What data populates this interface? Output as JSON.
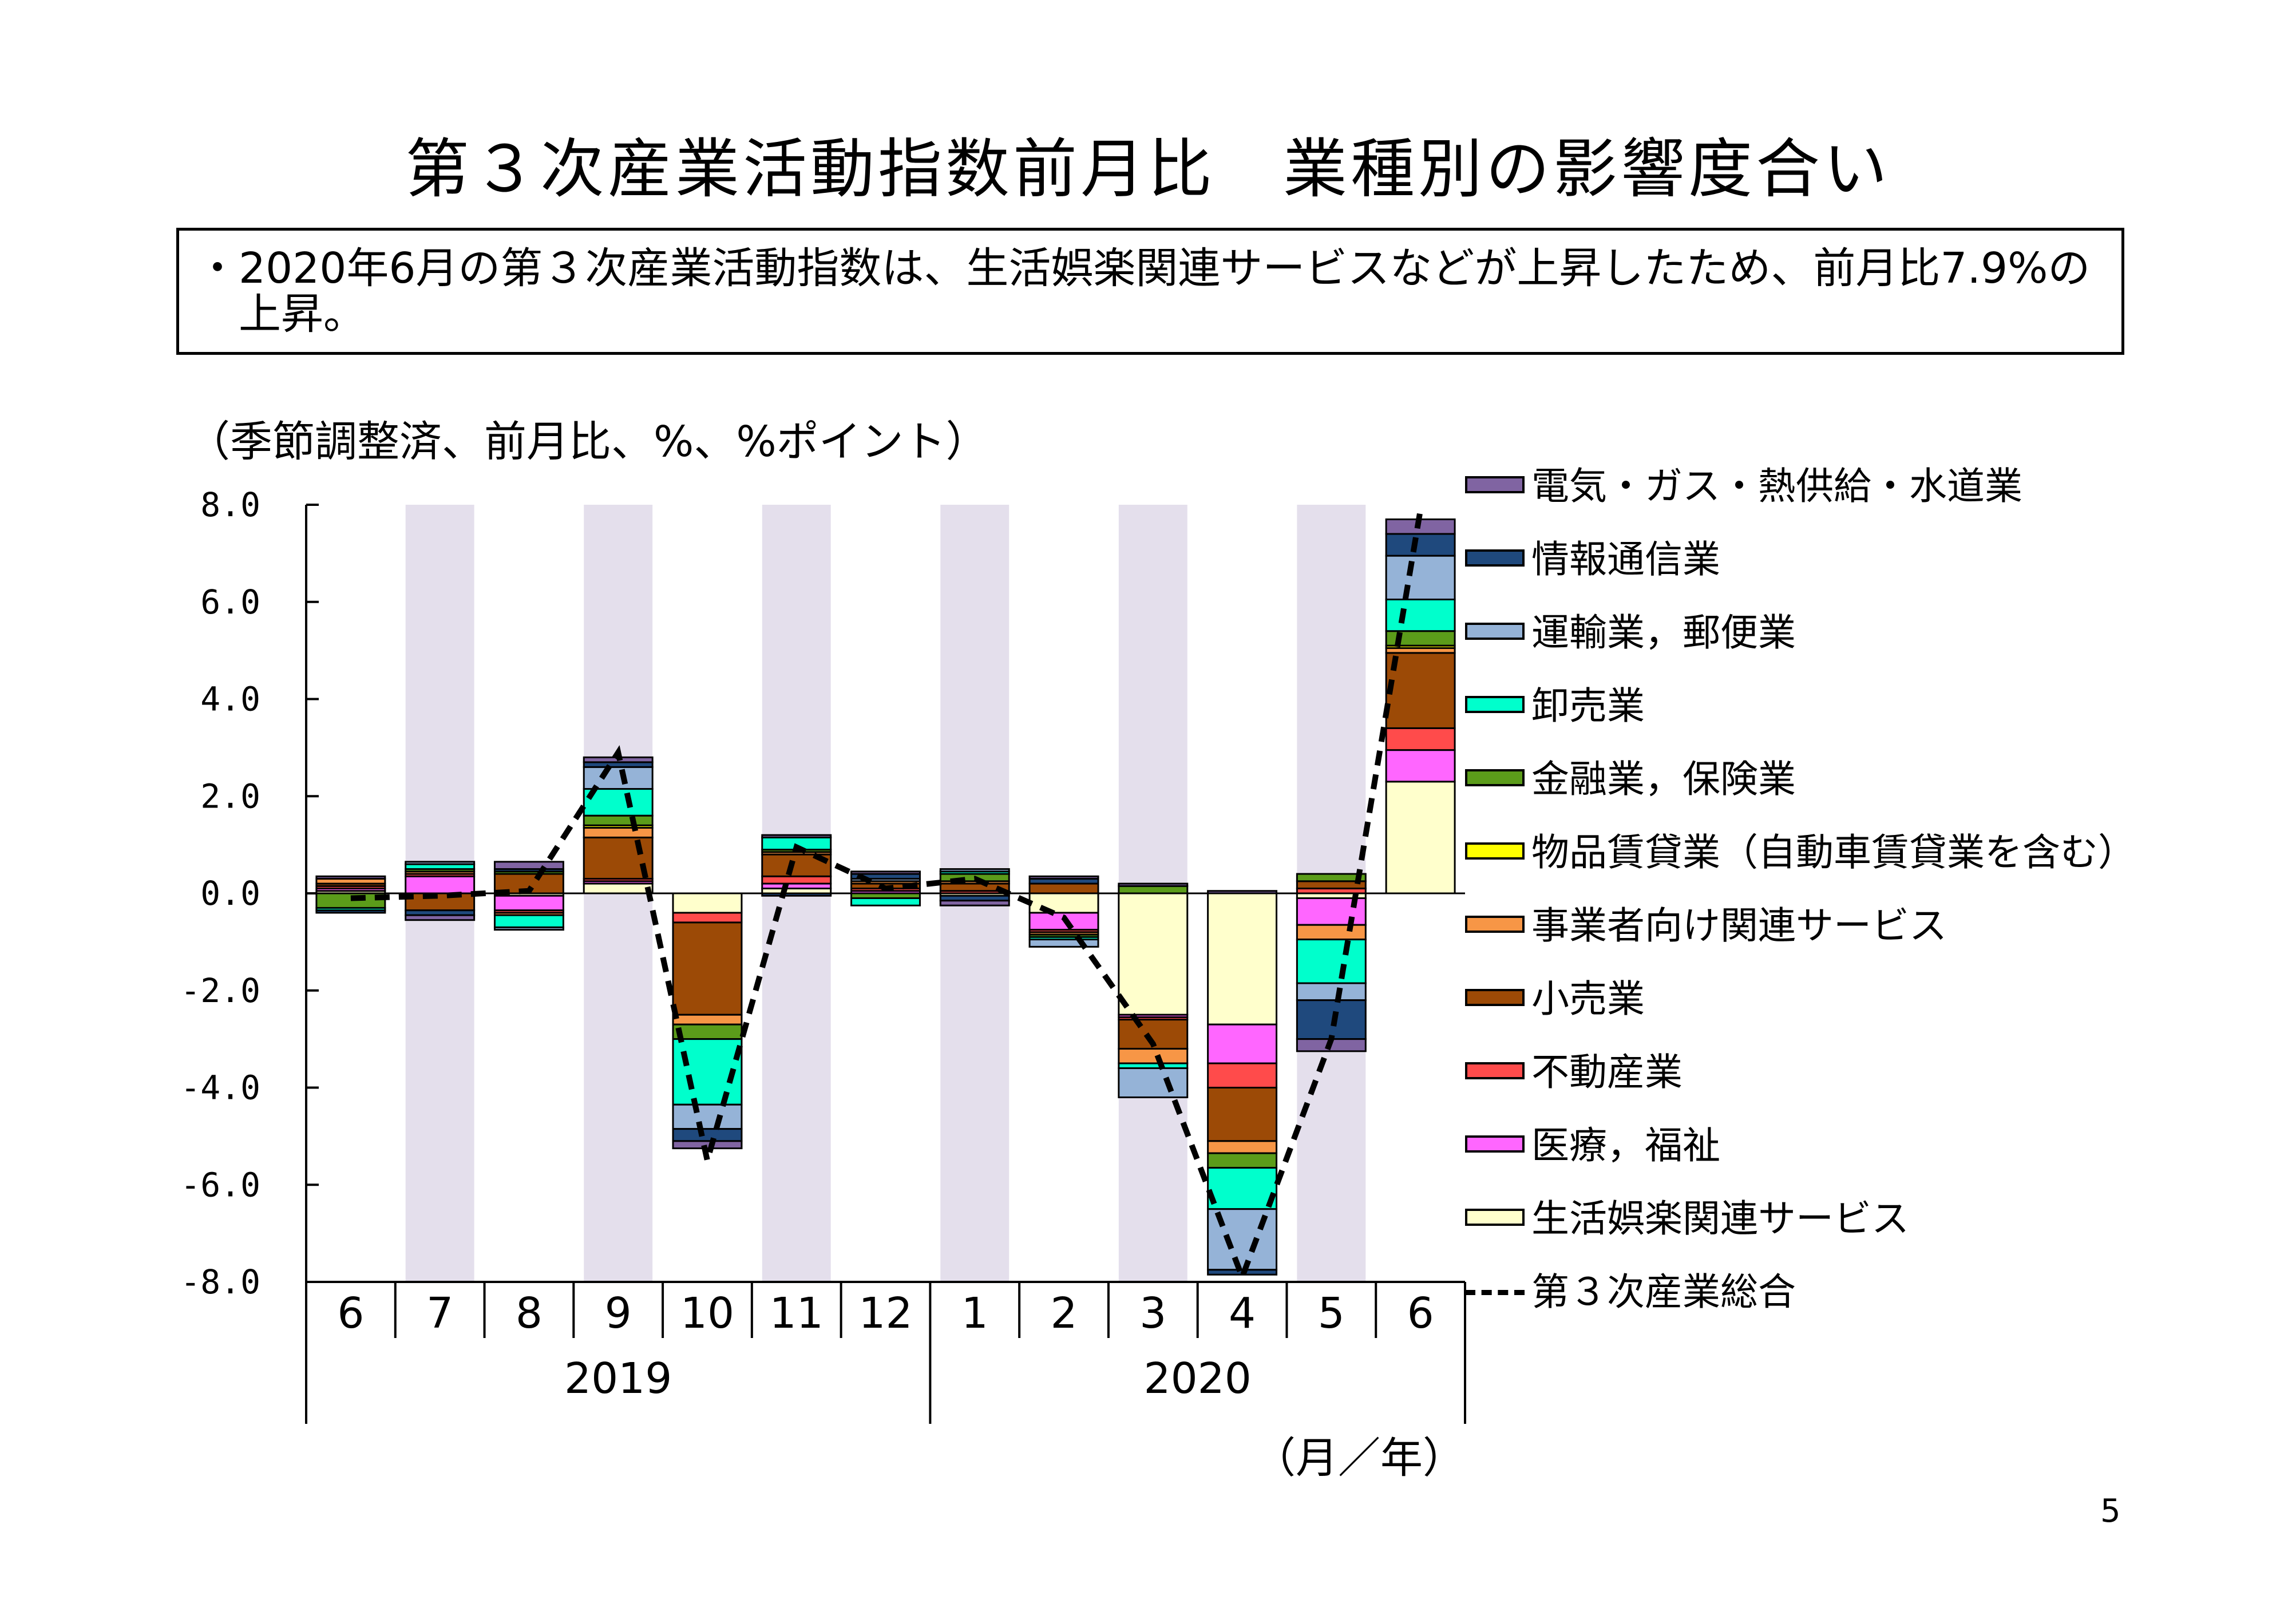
{
  "title": "第３次産業活動指数前月比　業種別の影響度合い",
  "note": {
    "line1": "・2020年6月の第３次産業活動指数は、生活娯楽関連サービスなどが上昇したため、前月比7.9%の",
    "line2": "上昇。"
  },
  "unit_label": "（季節調整済、前月比、%、%ポイント）",
  "month_unit_label": "（月／年）",
  "page_number": "5",
  "colors": {
    "shade": "#e4dfec",
    "electricity": "#8064a2",
    "info": "#1f497d",
    "transport": "#95b3d7",
    "wholesale": "#00ffcc",
    "finance": "#5b9c1a",
    "rental": "#ffff00",
    "business": "#f79646",
    "retail": "#9c4a06",
    "realestate": "#ff4b4b",
    "medical": "#ff66ff",
    "leisure": "#ffffcc",
    "total": "#000000"
  },
  "chart_data": {
    "type": "bar",
    "stacked": true,
    "ylim": [
      -8.0,
      8.0
    ],
    "yticks": [
      "8.0",
      "6.0",
      "4.0",
      "2.0",
      "0.0",
      "-2.0",
      "-4.0",
      "-6.0",
      "-8.0"
    ],
    "categories": [
      "6",
      "7",
      "8",
      "9",
      "10",
      "11",
      "12",
      "1",
      "2",
      "3",
      "4",
      "5",
      "6"
    ],
    "year_groups": [
      {
        "label": "2019",
        "months": 7
      },
      {
        "label": "2020",
        "months": 6
      }
    ],
    "shaded_columns": [
      1,
      3,
      5,
      7,
      9,
      11
    ],
    "series": [
      {
        "key": "leisure",
        "name": "生活娯楽関連サービス",
        "values": [
          0.05,
          0.0,
          -0.05,
          0.2,
          -0.4,
          0.1,
          0.0,
          -0.05,
          -0.4,
          -2.5,
          -2.7,
          -0.1,
          2.3
        ]
      },
      {
        "key": "medical",
        "name": "医療，福祉",
        "values": [
          0.05,
          0.35,
          -0.3,
          0.05,
          0.0,
          0.1,
          0.05,
          0.0,
          -0.35,
          -0.05,
          -0.8,
          -0.55,
          0.65
        ]
      },
      {
        "key": "realestate",
        "name": "不動産業",
        "values": [
          0.05,
          0.05,
          -0.05,
          0.05,
          -0.2,
          0.15,
          0.05,
          0.05,
          -0.05,
          -0.05,
          -0.5,
          0.1,
          0.45
        ]
      },
      {
        "key": "retail",
        "name": "小売業",
        "values": [
          0.05,
          -0.35,
          0.4,
          0.85,
          -1.9,
          0.45,
          0.1,
          0.15,
          0.2,
          -0.6,
          -1.1,
          0.15,
          1.55
        ]
      },
      {
        "key": "business",
        "name": "事業者向け関連サービス",
        "values": [
          0.1,
          0.05,
          -0.05,
          0.2,
          -0.2,
          0.05,
          0.05,
          0.05,
          -0.05,
          -0.3,
          -0.25,
          -0.3,
          0.1
        ]
      },
      {
        "key": "rental",
        "name": "物品賃貸業（自動車賃貸業を含む）",
        "values": [
          0.0,
          0.0,
          0.0,
          0.05,
          0.0,
          0.0,
          0.0,
          0.0,
          0.0,
          0.0,
          0.0,
          0.0,
          0.05
        ]
      },
      {
        "key": "finance",
        "name": "金融業，保険業",
        "values": [
          -0.3,
          0.05,
          0.05,
          0.2,
          -0.3,
          0.05,
          -0.1,
          0.15,
          -0.05,
          0.15,
          -0.3,
          0.15,
          0.3
        ]
      },
      {
        "key": "wholesale",
        "name": "卸売業",
        "values": [
          -0.05,
          0.1,
          -0.25,
          0.55,
          -1.35,
          0.25,
          -0.15,
          0.05,
          -0.05,
          -0.1,
          -0.85,
          -0.9,
          0.65
        ]
      },
      {
        "key": "transport",
        "name": "運輸業，郵便業",
        "values": [
          0.0,
          0.05,
          -0.05,
          0.45,
          -0.5,
          0.0,
          0.05,
          0.05,
          -0.15,
          -0.6,
          -1.25,
          -0.35,
          0.9
        ]
      },
      {
        "key": "info",
        "name": "情報通信業",
        "values": [
          -0.05,
          -0.1,
          0.05,
          0.1,
          -0.25,
          -0.05,
          0.1,
          -0.1,
          0.1,
          0.0,
          -0.1,
          -0.8,
          0.45
        ]
      },
      {
        "key": "electricity",
        "name": "電気・ガス・熱供給・水道業",
        "values": [
          0.05,
          -0.1,
          0.15,
          0.1,
          -0.15,
          0.05,
          0.05,
          -0.1,
          0.05,
          0.05,
          0.05,
          -0.25,
          0.3
        ]
      }
    ],
    "total": {
      "key": "total",
      "name": "第３次産業総合",
      "values": [
        -0.1,
        -0.05,
        0.05,
        2.9,
        -5.5,
        0.95,
        0.1,
        0.3,
        -0.5,
        -3.1,
        -7.9,
        -3.0,
        7.9
      ]
    }
  }
}
